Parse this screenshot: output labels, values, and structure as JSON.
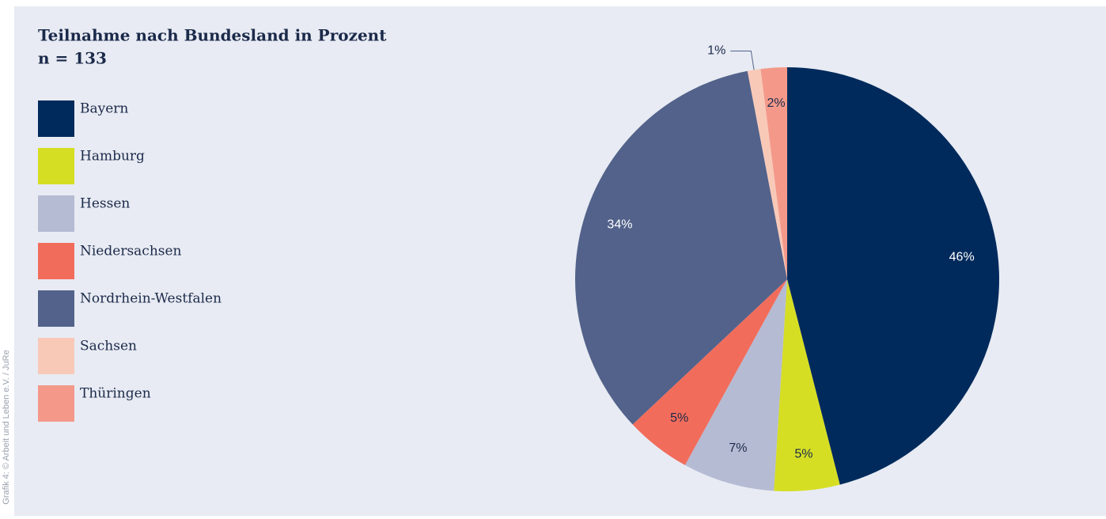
{
  "chart_data": {
    "type": "pie",
    "title": "Teilnahme nach Bundesland in Prozent",
    "subtitle": "n = 133",
    "credit": "Grafik 4: © Arbeit und Leben e.V. / JuRe",
    "categories": [
      "Bayern",
      "Hamburg",
      "Hessen",
      "Niedersachsen",
      "Nordrhein-Westfalen",
      "Sachsen",
      "Thüringen"
    ],
    "values": [
      46,
      5,
      7,
      5,
      34,
      1,
      2
    ],
    "value_labels": [
      "46%",
      "5%",
      "7%",
      "5%",
      "34%",
      "1%",
      "2%"
    ],
    "colors": [
      "#002a5c",
      "#d6de23",
      "#b5bbd3",
      "#f26c5b",
      "#52628a",
      "#f9c9b8",
      "#f4998a"
    ],
    "legend": "left"
  }
}
